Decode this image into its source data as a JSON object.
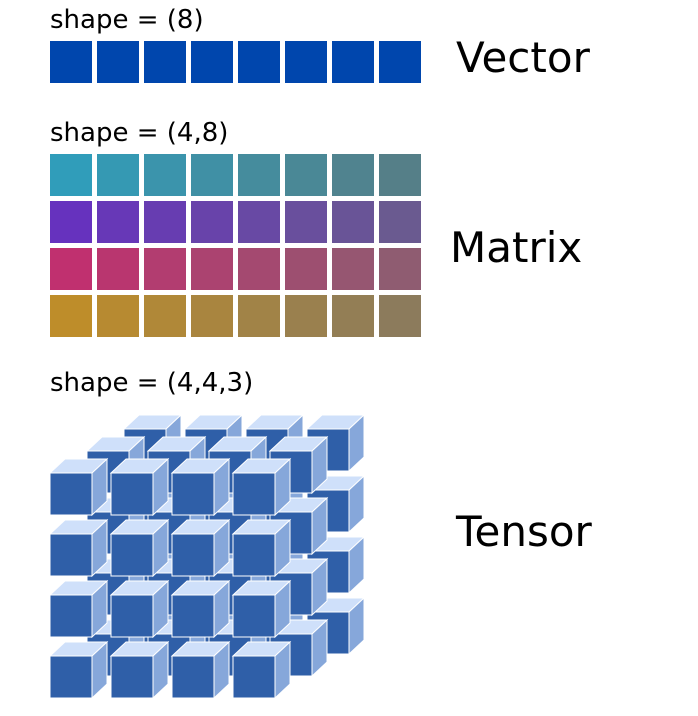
{
  "vector": {
    "shape_label": "shape = (8)",
    "title": "Vector",
    "columns": 8,
    "color": "#0046AD"
  },
  "matrix": {
    "shape_label": "shape = (4,8)",
    "title": "Matrix",
    "rows": 4,
    "columns": 8,
    "row_colors": [
      {
        "start": "#309DBA",
        "end": "#557F88"
      },
      {
        "start": "#6632BE",
        "end": "#6A5A90"
      },
      {
        "start": "#C0306F",
        "end": "#8F5C71"
      },
      {
        "start": "#BE8D2A",
        "end": "#8C7B5C"
      }
    ]
  },
  "tensor": {
    "shape_label": "shape = (4,4,3)",
    "title": "Tensor",
    "rows": 4,
    "columns": 4,
    "depth": 3,
    "colors": {
      "front": "#2F5FA8",
      "top": "#CFE0FA",
      "side": "#86A7DA"
    }
  }
}
